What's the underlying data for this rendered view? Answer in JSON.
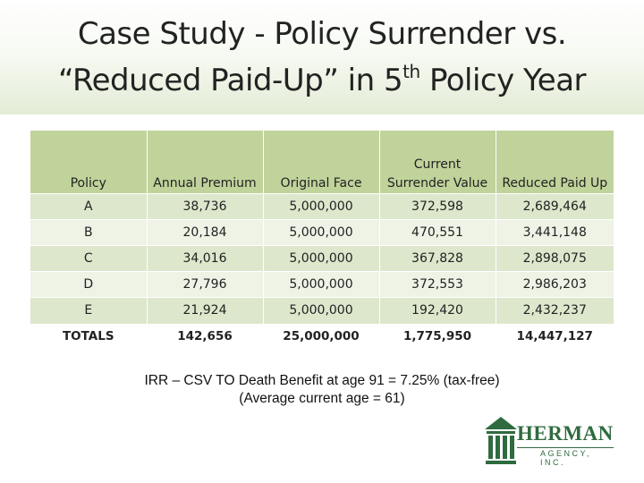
{
  "slide": {
    "title_line1": "Case Study - Policy Surrender vs.",
    "title_line2_pre": "“Reduced Paid-Up” in 5",
    "title_line2_sup": "th",
    "title_line2_post": " Policy Year"
  },
  "table": {
    "headers": [
      "Policy",
      "Annual Premium",
      "Original Face",
      "Current Surrender Value",
      "Reduced Paid Up"
    ],
    "rows": [
      [
        "A",
        "38,736",
        "5,000,000",
        "372,598",
        "2,689,464"
      ],
      [
        "B",
        "20,184",
        "5,000,000",
        "470,551",
        "3,441,148"
      ],
      [
        "C",
        "34,016",
        "5,000,000",
        "367,828",
        "2,898,075"
      ],
      [
        "D",
        "27,796",
        "5,000,000",
        "372,553",
        "2,986,203"
      ],
      [
        "E",
        "21,924",
        "5,000,000",
        "192,420",
        "2,432,237"
      ]
    ],
    "totals": [
      "TOTALS",
      "142,656",
      "25,000,000",
      "1,775,950",
      "14,447,127"
    ]
  },
  "note": {
    "line1": "IRR – CSV TO Death Benefit at age 91 = 7.25% (tax-free)",
    "line2": "(Average current age = 61)"
  },
  "logo": {
    "name": "HERMAN",
    "subtitle": "AGENCY, INC.",
    "icon": "building-icon",
    "color": "#2f6b3e"
  },
  "colors": {
    "header_bg": "#c0d39b",
    "row_dark": "#dde7cc",
    "row_light": "#eef3e6"
  }
}
